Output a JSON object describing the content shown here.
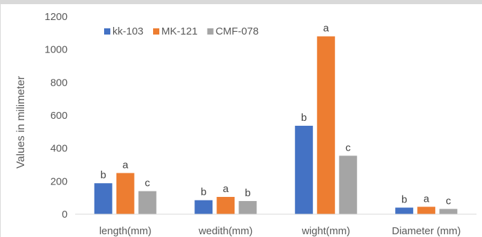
{
  "chart_data": {
    "type": "bar",
    "title": "",
    "xlabel": "",
    "ylabel": "Values in milimeter",
    "ylim": [
      0,
      1200
    ],
    "yticks": [
      0,
      200,
      400,
      600,
      800,
      1000,
      1200
    ],
    "grid": false,
    "legend_position": "top-left",
    "categories": [
      "length(mm)",
      "wedith(mm)",
      "wight(mm)",
      "Diameter (mm)"
    ],
    "series": [
      {
        "name": "kk-103",
        "color": "#4472c4",
        "values": [
          188,
          85,
          537,
          40
        ],
        "labels": [
          "b",
          "b",
          "b",
          "b"
        ]
      },
      {
        "name": "MK-121",
        "color": "#ed7d31",
        "values": [
          250,
          105,
          1080,
          45
        ],
        "labels": [
          "a",
          "a",
          "a",
          "a"
        ]
      },
      {
        "name": "CMF-078",
        "color": "#a5a5a5",
        "values": [
          140,
          80,
          355,
          32
        ],
        "labels": [
          "c",
          "b",
          "c",
          "c"
        ]
      }
    ]
  }
}
